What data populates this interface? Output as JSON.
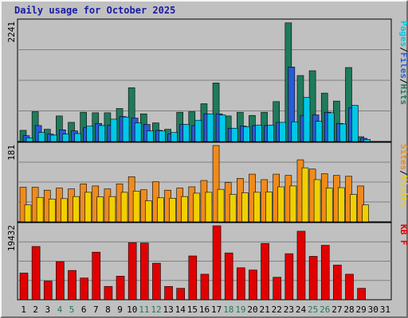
{
  "chart_data": {
    "type": "bar",
    "title": "Daily usage for October 2025",
    "categories": [
      "1",
      "2",
      "3",
      "4",
      "5",
      "6",
      "7",
      "8",
      "9",
      "10",
      "11",
      "12",
      "13",
      "14",
      "15",
      "16",
      "17",
      "18",
      "19",
      "20",
      "21",
      "22",
      "23",
      "24",
      "25",
      "26",
      "27",
      "28",
      "29",
      "30",
      "31"
    ],
    "weekend_days": [
      "4",
      "5",
      "11",
      "12",
      "18",
      "19",
      "25",
      "26"
    ],
    "panels": [
      {
        "max_label": "2241",
        "ymax": 2241,
        "legend": [
          "Pages",
          "/",
          "Files",
          "/",
          "Hits"
        ],
        "legend_colors": [
          "#00c8e8",
          "#000000",
          "#2a5ad6",
          "#000000",
          "#1f7a5c"
        ],
        "series": [
          {
            "name": "Hits",
            "color": "#1f7a5c",
            "values": [
              210,
              560,
              230,
              480,
              360,
              550,
              540,
              540,
              620,
              1010,
              520,
              350,
              230,
              550,
              560,
              710,
              1100,
              480,
              550,
              490,
              550,
              750,
              2230,
              1240,
              1330,
              910,
              760,
              1390,
              90,
              0,
              0
            ]
          },
          {
            "name": "Files",
            "color": "#2a5ad6",
            "values": [
              110,
              300,
              140,
              220,
              200,
              260,
              340,
              310,
              470,
              440,
              320,
              210,
              140,
              320,
              300,
              520,
              520,
              250,
              290,
              300,
              300,
              360,
              1400,
              490,
              500,
              550,
              340,
              630,
              60,
              0,
              0
            ]
          },
          {
            "name": "Pages",
            "color": "#00c8e8",
            "values": [
              70,
              170,
              120,
              140,
              150,
              290,
              300,
              420,
              460,
              350,
              200,
              200,
              170,
              320,
              400,
              520,
              500,
              250,
              280,
              310,
              310,
              360,
              370,
              830,
              380,
              540,
              330,
              680,
              40,
              0,
              0
            ]
          }
        ]
      },
      {
        "max_label": "181",
        "ymax": 181,
        "legend": [
          "Sites",
          "/",
          "Visits"
        ],
        "legend_colors": [
          "#f08a1c",
          "#000000",
          "#f0d000"
        ],
        "series": [
          {
            "name": "Visits",
            "color": "#f08a1c",
            "values": [
              82,
              82,
              75,
              80,
              78,
              90,
              85,
              78,
              90,
              107,
              76,
              95,
              75,
              80,
              83,
              98,
              181,
              93,
              103,
              113,
              100,
              113,
              110,
              147,
              125,
              114,
              110,
              108,
              85,
              0,
              0
            ]
          },
          {
            "name": "Sites",
            "color": "#f0d000",
            "values": [
              40,
              58,
              54,
              55,
              60,
              70,
              59,
              60,
              70,
              73,
              50,
              57,
              56,
              60,
              68,
              70,
              77,
              65,
              69,
              70,
              71,
              83,
              85,
              128,
              100,
              80,
              81,
              65,
              40,
              0,
              0
            ]
          }
        ]
      },
      {
        "max_label": "19432",
        "ymax": 19432,
        "legend": [
          "KB F"
        ],
        "legend_colors": [
          "#e00000"
        ],
        "series": [
          {
            "name": "KB F",
            "color": "#e00000",
            "values": [
              7000,
              14000,
              4900,
              10000,
              7700,
              5700,
              12500,
              3500,
              6200,
              15000,
              14900,
              9600,
              3500,
              3000,
              11500,
              6700,
              19432,
              12300,
              8400,
              7800,
              14800,
              5900,
              12100,
              18000,
              11400,
              14300,
              9100,
              6700,
              3000,
              0,
              0
            ]
          }
        ]
      }
    ]
  }
}
